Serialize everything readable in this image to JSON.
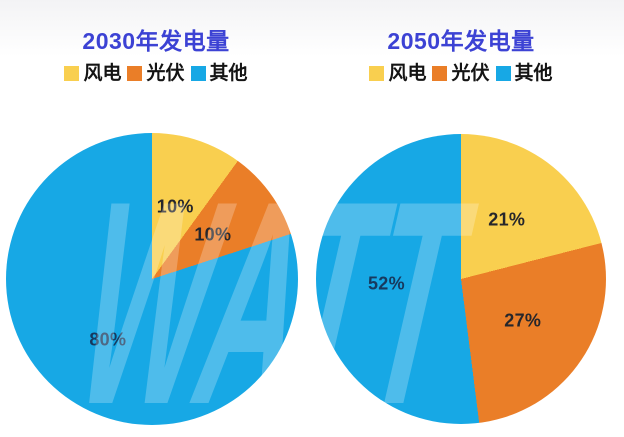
{
  "theme": {
    "title_color": "#3C42D4",
    "legend_text_color": "#141414",
    "background": "#FFFFFF"
  },
  "watermark": {
    "text": "WATT",
    "color": "rgba(255,255,255,0.24)"
  },
  "chart_data": [
    {
      "type": "pie",
      "title": "2030年发电量",
      "legend_position": "top",
      "start_angle_deg": 0,
      "direction": "clockwise",
      "segments": [
        {
          "name": "风电",
          "value": 10,
          "label": "10%",
          "color": "#F9CF4F",
          "label_color": "#26262b"
        },
        {
          "name": "光伏",
          "value": 10,
          "label": "10%",
          "color": "#EA7E28",
          "label_color": "#26262b"
        },
        {
          "name": "其他",
          "value": 80,
          "label": "80%",
          "color": "#17A8E5",
          "label_color": "#17395E"
        }
      ]
    },
    {
      "type": "pie",
      "title": "2050年发电量",
      "legend_position": "top",
      "start_angle_deg": 0,
      "direction": "clockwise",
      "segments": [
        {
          "name": "风电",
          "value": 21,
          "label": "21%",
          "color": "#F9CF4F",
          "label_color": "#26262b"
        },
        {
          "name": "光伏",
          "value": 27,
          "label": "27%",
          "color": "#EA7E28",
          "label_color": "#26262b"
        },
        {
          "name": "其他",
          "value": 52,
          "label": "52%",
          "color": "#17A8E5",
          "label_color": "#17395E"
        }
      ]
    }
  ]
}
